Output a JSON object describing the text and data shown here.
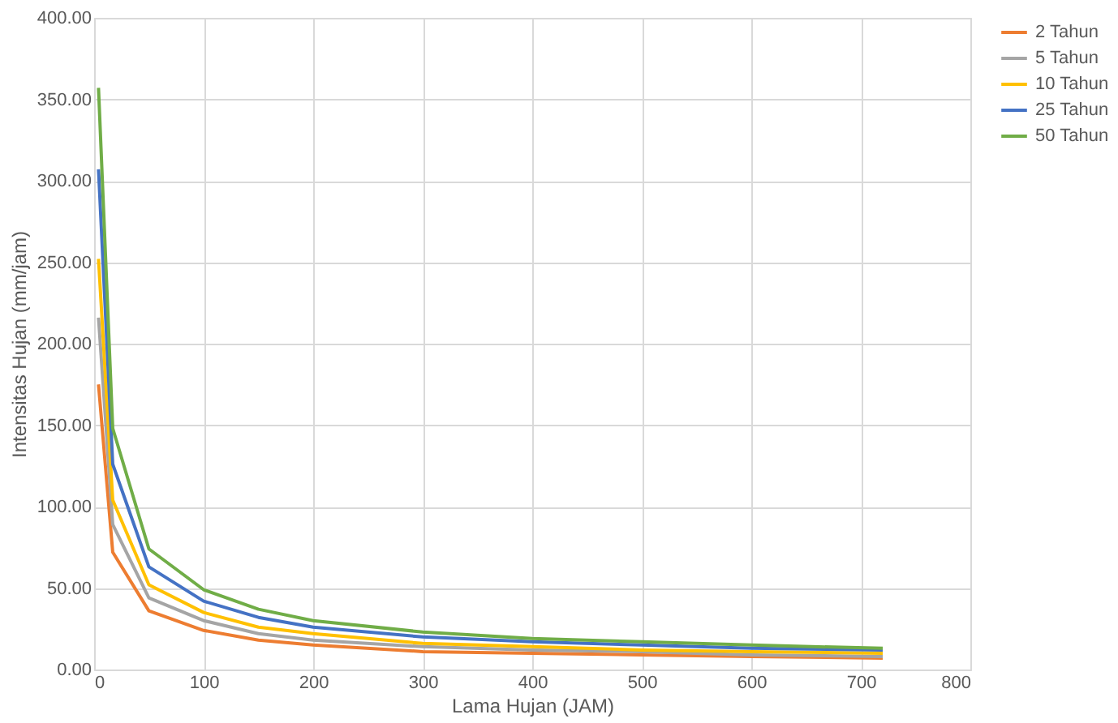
{
  "chart_data": {
    "type": "line",
    "xlabel": "Lama Hujan (JAM)",
    "ylabel": "Intensitas Hujan (mm/jam)",
    "x": [
      4,
      17,
      50,
      100,
      150,
      200,
      300,
      400,
      500,
      600,
      720
    ],
    "series": [
      {
        "name": "2 Tahun",
        "color": "#ed7d31",
        "values": [
          175,
          72,
          36,
          24,
          18,
          15,
          11,
          10,
          9,
          8,
          7
        ]
      },
      {
        "name": "5 Tahun",
        "color": "#a5a5a5",
        "values": [
          216,
          89,
          44,
          30,
          22,
          18,
          14,
          12,
          11,
          9,
          8
        ]
      },
      {
        "name": "10 Tahun",
        "color": "#ffc000",
        "values": [
          252,
          104,
          52,
          35,
          26,
          22,
          16,
          14,
          12,
          11,
          10
        ]
      },
      {
        "name": "25 Tahun",
        "color": "#4472c4",
        "values": [
          307,
          126,
          63,
          42,
          32,
          26,
          20,
          17,
          15,
          13,
          12
        ]
      },
      {
        "name": "50 Tahun",
        "color": "#70ad47",
        "values": [
          357,
          148,
          74,
          49,
          37,
          30,
          23,
          19,
          17,
          15,
          13
        ]
      }
    ],
    "xlim": [
      0,
      800
    ],
    "xticks": [
      0,
      100,
      200,
      300,
      400,
      500,
      600,
      700,
      800
    ],
    "ylim": [
      0,
      400
    ],
    "yticks": [
      {
        "value": 0,
        "label": "0.00"
      },
      {
        "value": 50,
        "label": "50.00"
      },
      {
        "value": 100,
        "label": "100.00"
      },
      {
        "value": 150,
        "label": "150.00"
      },
      {
        "value": 200,
        "label": "200.00"
      },
      {
        "value": 250,
        "label": "250.00"
      },
      {
        "value": 300,
        "label": "300.00"
      },
      {
        "value": 350,
        "label": "350.00"
      },
      {
        "value": 400,
        "label": "400.00"
      }
    ],
    "grid": true,
    "legend": "right",
    "marker": "none",
    "line_style": "solid"
  }
}
